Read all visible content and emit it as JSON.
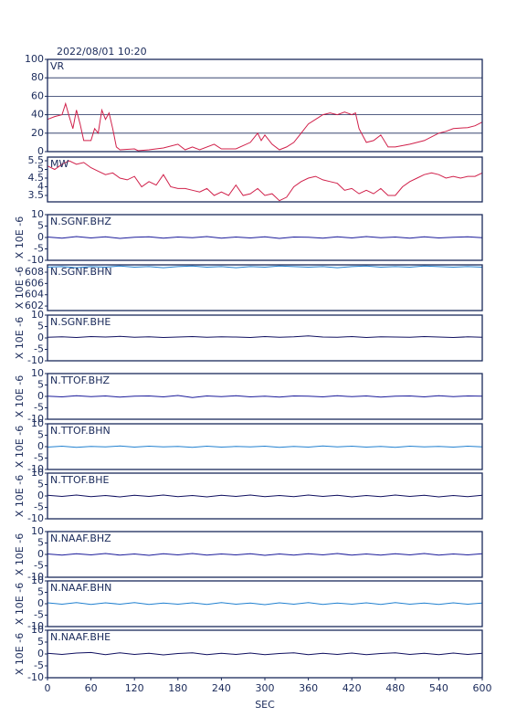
{
  "chart_data": [
    {
      "type": "line",
      "title": "2022/08/01 10:20",
      "label": "VR",
      "color": "#d0204a",
      "grid": true,
      "xlim": [
        0,
        600
      ],
      "ylim": [
        0,
        100
      ],
      "yticks": [
        0,
        20,
        40,
        60,
        80,
        100
      ],
      "x": [
        0,
        10,
        20,
        25,
        30,
        35,
        40,
        45,
        50,
        60,
        65,
        70,
        75,
        80,
        85,
        90,
        95,
        100,
        120,
        125,
        140,
        160,
        180,
        190,
        200,
        210,
        230,
        240,
        260,
        280,
        290,
        295,
        300,
        310,
        320,
        330,
        340,
        350,
        360,
        370,
        380,
        390,
        400,
        410,
        420,
        425,
        430,
        440,
        450,
        460,
        470,
        480,
        500,
        520,
        540,
        550,
        560,
        580,
        590,
        600
      ],
      "values": [
        35,
        38,
        40,
        52,
        38,
        25,
        45,
        30,
        12,
        12,
        25,
        20,
        45,
        35,
        42,
        25,
        5,
        2,
        3,
        1,
        2,
        4,
        8,
        2,
        5,
        2,
        8,
        3,
        3,
        10,
        20,
        12,
        18,
        8,
        2,
        5,
        10,
        20,
        30,
        35,
        40,
        42,
        40,
        43,
        40,
        42,
        25,
        10,
        12,
        18,
        5,
        5,
        8,
        12,
        20,
        22,
        25,
        26,
        28,
        32
      ]
    },
    {
      "type": "line",
      "label": "MW",
      "color": "#d0204a",
      "xlim": [
        0,
        600
      ],
      "ylim": [
        3.13,
        5.71
      ],
      "yticks": [
        3.5,
        4.0,
        4.5,
        5.0,
        5.5
      ],
      "x": [
        0,
        10,
        20,
        30,
        40,
        50,
        60,
        70,
        80,
        90,
        100,
        110,
        120,
        130,
        140,
        150,
        160,
        170,
        180,
        190,
        200,
        210,
        220,
        230,
        240,
        250,
        260,
        270,
        280,
        290,
        300,
        310,
        320,
        330,
        340,
        350,
        360,
        370,
        380,
        390,
        400,
        410,
        420,
        430,
        440,
        450,
        460,
        470,
        480,
        490,
        500,
        510,
        520,
        530,
        540,
        550,
        560,
        570,
        580,
        590,
        600
      ],
      "values": [
        5.2,
        5.0,
        5.3,
        5.5,
        5.3,
        5.4,
        5.1,
        4.9,
        4.7,
        4.8,
        4.5,
        4.4,
        4.6,
        4.0,
        4.3,
        4.1,
        4.7,
        4.0,
        3.9,
        3.9,
        3.8,
        3.7,
        3.9,
        3.5,
        3.7,
        3.5,
        4.1,
        3.5,
        3.6,
        3.9,
        3.5,
        3.6,
        3.2,
        3.4,
        4.0,
        4.3,
        4.5,
        4.6,
        4.4,
        4.3,
        4.2,
        3.8,
        3.9,
        3.6,
        3.8,
        3.6,
        3.9,
        3.5,
        3.5,
        4.0,
        4.3,
        4.5,
        4.7,
        4.8,
        4.7,
        4.5,
        4.6,
        4.5,
        4.6,
        4.6,
        4.8
      ]
    },
    {
      "type": "line",
      "label": "N.SGNF.BHZ",
      "ylabel": "X 10E -6",
      "color": "#1a1a9a",
      "xlim": [
        0,
        600
      ],
      "ylim": [
        -10,
        10
      ],
      "yticks": [
        -10,
        -5,
        0,
        5,
        10
      ],
      "x": [
        0,
        20,
        40,
        60,
        80,
        100,
        120,
        140,
        160,
        180,
        200,
        220,
        240,
        260,
        280,
        300,
        320,
        340,
        360,
        380,
        400,
        420,
        440,
        460,
        480,
        500,
        520,
        540,
        560,
        580,
        600
      ],
      "values": [
        0.2,
        -0.3,
        0.4,
        -0.2,
        0.3,
        -0.4,
        0.1,
        0.3,
        -0.3,
        0.2,
        -0.1,
        0.4,
        -0.3,
        0.2,
        -0.2,
        0.3,
        -0.4,
        0.2,
        0.1,
        -0.3,
        0.3,
        -0.2,
        0.4,
        -0.1,
        0.2,
        -0.3,
        0.3,
        -0.2,
        0.1,
        0.3,
        -0.1
      ]
    },
    {
      "type": "line",
      "label": "N.SGNF.BHN",
      "ylabel": "X 10E -6",
      "color": "#2080d0",
      "xlim": [
        0,
        600
      ],
      "ylim": [
        601.2,
        609.3
      ],
      "yticks": [
        602,
        604,
        606,
        608
      ],
      "x": [
        0,
        20,
        40,
        60,
        80,
        100,
        120,
        140,
        160,
        180,
        200,
        220,
        240,
        260,
        280,
        300,
        320,
        340,
        360,
        380,
        400,
        420,
        440,
        460,
        480,
        500,
        520,
        540,
        560,
        580,
        600
      ],
      "values": [
        608.9,
        609.0,
        608.8,
        609.0,
        608.9,
        609.1,
        608.9,
        609.0,
        608.8,
        609.0,
        609.1,
        608.9,
        609.0,
        608.8,
        609.0,
        608.9,
        609.1,
        609.0,
        608.9,
        609.0,
        608.8,
        609.0,
        609.1,
        608.9,
        609.0,
        608.9,
        609.1,
        609.0,
        608.9,
        609.0,
        608.9
      ]
    },
    {
      "type": "line",
      "label": "N.SGNF.BHE",
      "ylabel": "X 10E -6",
      "color": "#101060",
      "xlim": [
        0,
        600
      ],
      "ylim": [
        -10,
        10
      ],
      "yticks": [
        -10,
        -5,
        0,
        5,
        10
      ],
      "x": [
        0,
        20,
        40,
        60,
        80,
        100,
        120,
        140,
        160,
        180,
        200,
        220,
        240,
        260,
        280,
        300,
        320,
        340,
        360,
        380,
        400,
        420,
        440,
        460,
        480,
        500,
        520,
        540,
        560,
        580,
        600
      ],
      "values": [
        0.3,
        0.5,
        0.2,
        0.6,
        0.4,
        0.7,
        0.3,
        0.5,
        0.2,
        0.4,
        0.6,
        0.3,
        0.5,
        0.4,
        0.2,
        0.6,
        0.3,
        0.5,
        0.9,
        0.4,
        0.3,
        0.6,
        0.2,
        0.5,
        0.4,
        0.3,
        0.6,
        0.4,
        0.2,
        0.5,
        0.3
      ]
    },
    {
      "type": "line",
      "label": "N.TTOF.BHZ",
      "ylabel": "X 10E -6",
      "color": "#1a1a9a",
      "xlim": [
        0,
        600
      ],
      "ylim": [
        -10,
        10
      ],
      "yticks": [
        -10,
        -5,
        0,
        5,
        10
      ],
      "x": [
        0,
        20,
        40,
        60,
        80,
        100,
        120,
        140,
        160,
        180,
        200,
        220,
        240,
        260,
        280,
        300,
        320,
        340,
        360,
        380,
        400,
        420,
        440,
        460,
        480,
        500,
        520,
        540,
        560,
        580,
        600
      ],
      "values": [
        0.1,
        -0.2,
        0.3,
        -0.1,
        0.2,
        -0.3,
        0.1,
        0.2,
        -0.2,
        0.4,
        -0.5,
        0.2,
        -0.1,
        0.3,
        -0.2,
        0.1,
        -0.3,
        0.2,
        0.1,
        -0.2,
        0.3,
        -0.1,
        0.2,
        -0.3,
        0.1,
        0.2,
        -0.2,
        0.3,
        -0.1,
        0.2,
        0.1
      ]
    },
    {
      "type": "line",
      "label": "N.TTOF.BHN",
      "ylabel": "X 10E -6",
      "color": "#2080d0",
      "xlim": [
        0,
        600
      ],
      "ylim": [
        -10,
        10
      ],
      "yticks": [
        -10,
        -5,
        0,
        5,
        10
      ],
      "x": [
        0,
        20,
        40,
        60,
        80,
        100,
        120,
        140,
        160,
        180,
        200,
        220,
        240,
        260,
        280,
        300,
        320,
        340,
        360,
        380,
        400,
        420,
        440,
        460,
        480,
        500,
        520,
        540,
        560,
        580,
        600
      ],
      "values": [
        -0.2,
        0.2,
        -0.3,
        0.1,
        -0.1,
        0.3,
        -0.2,
        0.2,
        -0.1,
        0.1,
        -0.3,
        0.2,
        -0.2,
        0.1,
        -0.1,
        0.2,
        -0.3,
        0.1,
        -0.2,
        0.3,
        -0.1,
        0.2,
        -0.2,
        0.1,
        -0.3,
        0.2,
        -0.1,
        0.1,
        -0.2,
        0.2,
        -0.1
      ]
    },
    {
      "type": "line",
      "label": "N.TTOF.BHE",
      "ylabel": "X 10E -6",
      "color": "#101060",
      "xlim": [
        0,
        600
      ],
      "ylim": [
        -10,
        10
      ],
      "yticks": [
        -10,
        -5,
        0,
        5,
        10
      ],
      "x": [
        0,
        20,
        40,
        60,
        80,
        100,
        120,
        140,
        160,
        180,
        200,
        220,
        240,
        260,
        280,
        300,
        320,
        340,
        360,
        380,
        400,
        420,
        440,
        460,
        480,
        500,
        520,
        540,
        560,
        580,
        600
      ],
      "values": [
        0.3,
        -0.2,
        0.4,
        -0.3,
        0.2,
        -0.4,
        0.3,
        -0.2,
        0.4,
        -0.3,
        0.2,
        -0.4,
        0.3,
        -0.2,
        0.4,
        -0.3,
        0.2,
        -0.3,
        0.4,
        -0.2,
        0.3,
        -0.4,
        0.2,
        -0.3,
        0.4,
        -0.2,
        0.3,
        -0.4,
        0.2,
        -0.3,
        0.3
      ]
    },
    {
      "type": "line",
      "label": "N.NAAF.BHZ",
      "ylabel": "X 10E -6",
      "color": "#1a1a9a",
      "xlim": [
        0,
        600
      ],
      "ylim": [
        -10,
        10
      ],
      "yticks": [
        -10,
        -5,
        0,
        5,
        10
      ],
      "x": [
        0,
        20,
        40,
        60,
        80,
        100,
        120,
        140,
        160,
        180,
        200,
        220,
        240,
        260,
        280,
        300,
        320,
        340,
        360,
        380,
        400,
        420,
        440,
        460,
        480,
        500,
        520,
        540,
        560,
        580,
        600
      ],
      "values": [
        0.2,
        -0.3,
        0.3,
        -0.2,
        0.4,
        -0.3,
        0.2,
        -0.4,
        0.3,
        -0.2,
        0.4,
        -0.3,
        0.2,
        -0.2,
        0.3,
        -0.4,
        0.2,
        -0.3,
        0.3,
        -0.2,
        0.4,
        -0.3,
        0.2,
        -0.3,
        0.3,
        -0.2,
        0.4,
        -0.3,
        0.2,
        -0.2,
        0.3
      ]
    },
    {
      "type": "line",
      "label": "N.NAAF.BHN",
      "ylabel": "X 10E -6",
      "color": "#2080d0",
      "xlim": [
        0,
        600
      ],
      "ylim": [
        -10,
        10
      ],
      "yticks": [
        -10,
        -5,
        0,
        5,
        10
      ],
      "x": [
        0,
        20,
        40,
        60,
        80,
        100,
        120,
        140,
        160,
        180,
        200,
        220,
        240,
        260,
        280,
        300,
        320,
        340,
        360,
        380,
        400,
        420,
        440,
        460,
        480,
        500,
        520,
        540,
        560,
        580,
        600
      ],
      "values": [
        0.4,
        -0.2,
        0.5,
        -0.3,
        0.4,
        -0.2,
        0.5,
        -0.3,
        0.3,
        -0.2,
        0.4,
        -0.3,
        0.5,
        -0.2,
        0.3,
        -0.4,
        0.4,
        -0.2,
        0.5,
        -0.3,
        0.3,
        -0.2,
        0.4,
        -0.3,
        0.5,
        -0.2,
        0.3,
        -0.3,
        0.4,
        -0.2,
        0.3
      ]
    },
    {
      "type": "line",
      "label": "N.NAAF.BHE",
      "ylabel": "X 10E -6",
      "color": "#101060",
      "xlim": [
        0,
        600
      ],
      "ylim": [
        -10,
        10
      ],
      "yticks": [
        -10,
        -5,
        0,
        5,
        10
      ],
      "xlabel": "SEC",
      "xticks": [
        0,
        60,
        120,
        180,
        240,
        300,
        360,
        420,
        480,
        540,
        600
      ],
      "x": [
        0,
        20,
        40,
        60,
        80,
        100,
        120,
        140,
        160,
        180,
        200,
        220,
        240,
        260,
        280,
        300,
        320,
        340,
        360,
        380,
        400,
        420,
        440,
        460,
        480,
        500,
        520,
        540,
        560,
        580,
        600
      ],
      "values": [
        0.3,
        -0.2,
        0.4,
        0.6,
        -0.3,
        0.5,
        -0.2,
        0.3,
        -0.4,
        0.2,
        0.5,
        -0.3,
        0.3,
        -0.2,
        0.4,
        -0.3,
        0.2,
        0.5,
        -0.3,
        0.3,
        -0.2,
        0.4,
        -0.3,
        0.2,
        0.5,
        -0.2,
        0.3,
        -0.3,
        0.4,
        -0.2,
        0.3
      ]
    }
  ]
}
